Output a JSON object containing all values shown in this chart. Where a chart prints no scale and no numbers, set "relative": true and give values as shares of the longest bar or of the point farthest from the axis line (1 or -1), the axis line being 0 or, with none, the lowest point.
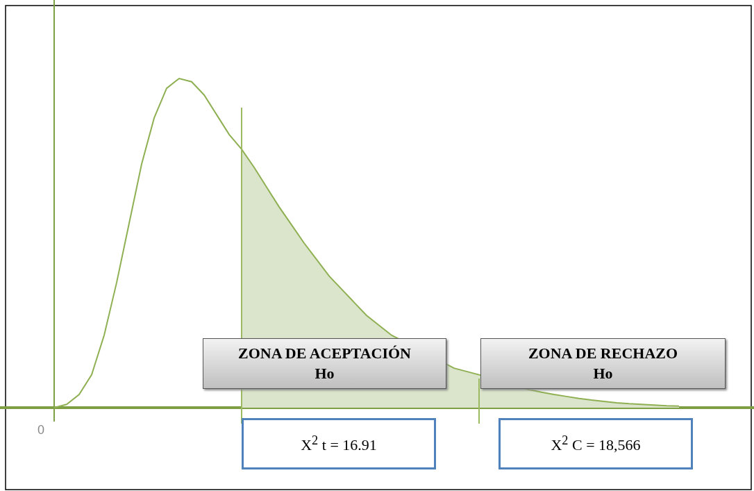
{
  "chart_data": {
    "type": "line",
    "relative": true,
    "marker": "none",
    "line_style": "solid",
    "grid": false,
    "categories": [
      null,
      null,
      null,
      null,
      null,
      null,
      null,
      null,
      null,
      null,
      null,
      null,
      null,
      null,
      null,
      null,
      null,
      null,
      null,
      null,
      null,
      null,
      null,
      null,
      null,
      null,
      null,
      null,
      null,
      null,
      null,
      null,
      null,
      null,
      null,
      null,
      null,
      null,
      null,
      null,
      null,
      null,
      null,
      null,
      null,
      null,
      null,
      null,
      null,
      null,
      null
    ],
    "series": [
      {
        "type": "area",
        "color": "#dbe5cb",
        "values": [
          null,
          null,
          null,
          null,
          null,
          null,
          null,
          null,
          null,
          null,
          null,
          null,
          null,
          null,
          null,
          0.785,
          0.73,
          0.67,
          0.61,
          0.555,
          0.5,
          0.45,
          0.4,
          0.36,
          0.32,
          0.28,
          0.25,
          0.22,
          null,
          null,
          null,
          null,
          0.12,
          0.11,
          0.1,
          null,
          null,
          null,
          0.055,
          0.047,
          0.04,
          0.034,
          0.028,
          0.023,
          0.019,
          0.015,
          0.012,
          0.01,
          0.008,
          0.006,
          0.005
        ]
      },
      {
        "type": "line",
        "color": "#8fb052",
        "values": [
          0,
          0.01,
          0.04,
          0.1,
          0.22,
          0.38,
          0.56,
          0.74,
          0.88,
          0.97,
          1,
          0.99,
          0.95,
          0.89,
          0.83,
          0.785,
          0.73,
          0.67,
          0.61,
          0.555,
          0.5,
          0.45,
          0.4,
          0.36,
          0.32,
          0.28,
          0.25,
          0.22,
          null,
          null,
          null,
          null,
          0.12,
          0.11,
          0.1,
          null,
          null,
          null,
          0.055,
          0.047,
          0.04,
          0.034,
          0.028,
          0.023,
          0.019,
          0.015,
          0.012,
          0.01,
          0.008,
          0.006,
          0.005
        ]
      }
    ],
    "annotations": [
      "ZONA DE ACEPTACIÓN\nHo",
      "ZONA DE RECHAZO\nHo",
      "X$^{2}$ t = 16.91",
      "X$^{2}$ C = 18,566",
      "0"
    ]
  }
}
